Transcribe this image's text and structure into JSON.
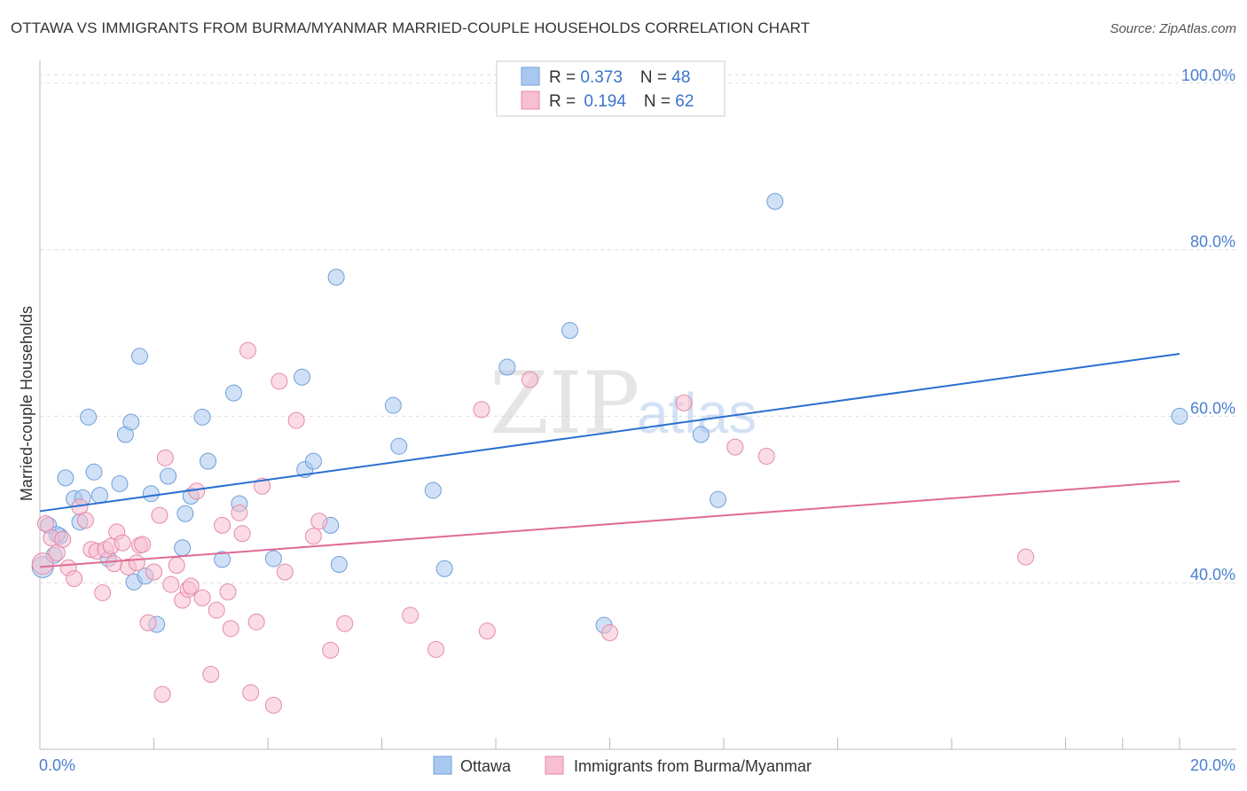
{
  "header": {
    "title": "OTTAWA VS IMMIGRANTS FROM BURMA/MYANMAR MARRIED-COUPLE HOUSEHOLDS CORRELATION CHART",
    "source": "Source: ZipAtlas.com"
  },
  "legend": {
    "rows": [
      {
        "r_label": "R = ",
        "r_value": "0.373",
        "n_label": "N = ",
        "n_value": "48"
      },
      {
        "r_label": "R = ",
        "r_value": "0.194",
        "n_label": "N = ",
        "n_value": "62"
      }
    ]
  },
  "watermark": {
    "zip": "ZIP",
    "atlas": "atlas"
  },
  "colors": {
    "ottawa_fill": "#a9c8f0",
    "ottawa_stroke": "#6f9fd8",
    "ottawa_line": "#2a6fd0",
    "burma_fill": "#f7bfd0",
    "burma_stroke": "#e58aa8",
    "burma_line": "#e06a94",
    "grid": "#dddddd",
    "tick_text": "#4a7fd1"
  },
  "chart_data": {
    "type": "scatter",
    "title": "OTTAWA VS IMMIGRANTS FROM BURMA/MYANMAR MARRIED-COUPLE HOUSEHOLDS CORRELATION CHART",
    "xlabel": "",
    "ylabel": "Married-couple Households",
    "xlim": [
      0,
      20
    ],
    "ylim": [
      20,
      102
    ],
    "x_tick_labels": [
      "0.0%",
      "20.0%"
    ],
    "y_ticks": [
      40,
      60,
      80,
      100
    ],
    "y_tick_labels": [
      "40.0%",
      "60.0%",
      "80.0%",
      "100.0%"
    ],
    "grid": true,
    "legend_position": "top-center",
    "series": [
      {
        "name": "Ottawa",
        "R": 0.373,
        "N": 48,
        "trend": {
          "x": [
            0,
            20
          ],
          "y": [
            48.6,
            67.5
          ]
        },
        "points": [
          {
            "x": 0.05,
            "y": 41.9
          },
          {
            "x": 0.15,
            "y": 46.9
          },
          {
            "x": 0.25,
            "y": 43.3
          },
          {
            "x": 0.35,
            "y": 45.6
          },
          {
            "x": 0.45,
            "y": 52.6
          },
          {
            "x": 0.6,
            "y": 50.1
          },
          {
            "x": 0.7,
            "y": 47.3
          },
          {
            "x": 0.75,
            "y": 50.2
          },
          {
            "x": 0.85,
            "y": 59.9
          },
          {
            "x": 0.95,
            "y": 53.3
          },
          {
            "x": 1.05,
            "y": 50.5
          },
          {
            "x": 1.2,
            "y": 42.9
          },
          {
            "x": 1.4,
            "y": 51.9
          },
          {
            "x": 1.5,
            "y": 57.8
          },
          {
            "x": 1.6,
            "y": 59.3
          },
          {
            "x": 1.65,
            "y": 40.1
          },
          {
            "x": 1.75,
            "y": 67.2
          },
          {
            "x": 1.85,
            "y": 40.8
          },
          {
            "x": 1.95,
            "y": 50.7
          },
          {
            "x": 2.05,
            "y": 35.0
          },
          {
            "x": 2.25,
            "y": 52.8
          },
          {
            "x": 2.5,
            "y": 44.2
          },
          {
            "x": 2.55,
            "y": 48.3
          },
          {
            "x": 2.65,
            "y": 50.4
          },
          {
            "x": 2.85,
            "y": 59.9
          },
          {
            "x": 2.95,
            "y": 54.6
          },
          {
            "x": 3.2,
            "y": 42.8
          },
          {
            "x": 3.4,
            "y": 62.8
          },
          {
            "x": 3.5,
            "y": 49.5
          },
          {
            "x": 4.1,
            "y": 42.9
          },
          {
            "x": 4.6,
            "y": 64.7
          },
          {
            "x": 4.65,
            "y": 53.6
          },
          {
            "x": 4.8,
            "y": 54.6
          },
          {
            "x": 5.1,
            "y": 46.9
          },
          {
            "x": 5.2,
            "y": 76.7
          },
          {
            "x": 5.25,
            "y": 42.2
          },
          {
            "x": 6.2,
            "y": 61.3
          },
          {
            "x": 6.3,
            "y": 56.4
          },
          {
            "x": 6.9,
            "y": 51.1
          },
          {
            "x": 7.1,
            "y": 41.7
          },
          {
            "x": 8.2,
            "y": 65.9
          },
          {
            "x": 9.3,
            "y": 70.3
          },
          {
            "x": 9.9,
            "y": 34.9
          },
          {
            "x": 11.6,
            "y": 57.8
          },
          {
            "x": 11.9,
            "y": 50.0
          },
          {
            "x": 12.9,
            "y": 85.8
          },
          {
            "x": 20.0,
            "y": 60.0
          },
          {
            "x": 0.3,
            "y": 45.8
          }
        ]
      },
      {
        "name": "Immigrants from Burma/Myanmar",
        "R": 0.194,
        "N": 62,
        "trend": {
          "x": [
            0,
            20
          ],
          "y": [
            41.9,
            52.2
          ]
        },
        "points": [
          {
            "x": 0.05,
            "y": 42.3
          },
          {
            "x": 0.1,
            "y": 47.1
          },
          {
            "x": 0.2,
            "y": 45.4
          },
          {
            "x": 0.3,
            "y": 43.6
          },
          {
            "x": 0.4,
            "y": 45.2
          },
          {
            "x": 0.5,
            "y": 41.8
          },
          {
            "x": 0.6,
            "y": 40.5
          },
          {
            "x": 0.7,
            "y": 49.1
          },
          {
            "x": 0.8,
            "y": 47.5
          },
          {
            "x": 0.9,
            "y": 44.0
          },
          {
            "x": 1.0,
            "y": 43.8
          },
          {
            "x": 1.1,
            "y": 38.8
          },
          {
            "x": 1.15,
            "y": 44.0
          },
          {
            "x": 1.25,
            "y": 44.4
          },
          {
            "x": 1.3,
            "y": 42.3
          },
          {
            "x": 1.35,
            "y": 46.1
          },
          {
            "x": 1.45,
            "y": 44.8
          },
          {
            "x": 1.55,
            "y": 41.9
          },
          {
            "x": 1.7,
            "y": 42.4
          },
          {
            "x": 1.75,
            "y": 44.5
          },
          {
            "x": 1.8,
            "y": 44.6
          },
          {
            "x": 1.9,
            "y": 35.2
          },
          {
            "x": 2.0,
            "y": 41.3
          },
          {
            "x": 2.1,
            "y": 48.1
          },
          {
            "x": 2.15,
            "y": 26.6
          },
          {
            "x": 2.2,
            "y": 55.0
          },
          {
            "x": 2.3,
            "y": 39.8
          },
          {
            "x": 2.4,
            "y": 42.1
          },
          {
            "x": 2.5,
            "y": 37.9
          },
          {
            "x": 2.6,
            "y": 39.2
          },
          {
            "x": 2.65,
            "y": 39.6
          },
          {
            "x": 2.75,
            "y": 51.0
          },
          {
            "x": 2.85,
            "y": 38.2
          },
          {
            "x": 3.0,
            "y": 29.0
          },
          {
            "x": 3.1,
            "y": 36.7
          },
          {
            "x": 3.2,
            "y": 46.9
          },
          {
            "x": 3.3,
            "y": 38.9
          },
          {
            "x": 3.35,
            "y": 34.5
          },
          {
            "x": 3.5,
            "y": 48.4
          },
          {
            "x": 3.55,
            "y": 45.9
          },
          {
            "x": 3.65,
            "y": 67.9
          },
          {
            "x": 3.7,
            "y": 26.8
          },
          {
            "x": 3.8,
            "y": 35.3
          },
          {
            "x": 3.9,
            "y": 51.6
          },
          {
            "x": 4.1,
            "y": 25.3
          },
          {
            "x": 4.2,
            "y": 64.2
          },
          {
            "x": 4.3,
            "y": 41.3
          },
          {
            "x": 4.5,
            "y": 59.5
          },
          {
            "x": 4.8,
            "y": 45.6
          },
          {
            "x": 4.9,
            "y": 47.4
          },
          {
            "x": 5.1,
            "y": 31.9
          },
          {
            "x": 5.35,
            "y": 35.1
          },
          {
            "x": 6.5,
            "y": 36.1
          },
          {
            "x": 6.95,
            "y": 32.0
          },
          {
            "x": 7.75,
            "y": 60.8
          },
          {
            "x": 7.85,
            "y": 34.2
          },
          {
            "x": 8.6,
            "y": 64.4
          },
          {
            "x": 10.0,
            "y": 34.0
          },
          {
            "x": 11.3,
            "y": 61.6
          },
          {
            "x": 12.2,
            "y": 56.3
          },
          {
            "x": 12.75,
            "y": 55.2
          },
          {
            "x": 17.3,
            "y": 43.1
          }
        ]
      }
    ]
  }
}
